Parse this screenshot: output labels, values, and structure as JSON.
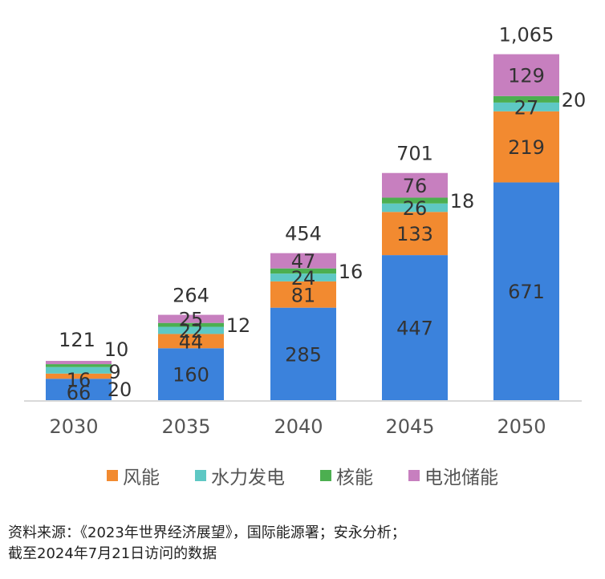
{
  "chart_data": {
    "type": "bar",
    "stacked": true,
    "title": "",
    "xlabel": "",
    "ylabel": "",
    "categories": [
      "2030",
      "2035",
      "2040",
      "2045",
      "2050"
    ],
    "series": [
      {
        "name": "",
        "color": "#3b82dc",
        "values": [
          66,
          160,
          285,
          447,
          671
        ],
        "legend": false
      },
      {
        "name": "风能",
        "color": "#f28a30",
        "values": [
          16,
          44,
          81,
          133,
          219
        ],
        "legend": true
      },
      {
        "name": "水力发电",
        "color": "#5ec8c4",
        "values": [
          20,
          22,
          24,
          26,
          27
        ],
        "legend": true
      },
      {
        "name": "核能",
        "color": "#4caf50",
        "values": [
          9,
          12,
          16,
          18,
          20
        ],
        "legend": true
      },
      {
        "name": "电池储能",
        "color": "#c77fbf",
        "values": [
          10,
          25,
          47,
          76,
          129
        ],
        "legend": true
      }
    ],
    "totals": [
      "121",
      "264",
      "454",
      "701",
      "1,065"
    ],
    "segment_labels": [
      [
        "66",
        "160",
        "285",
        "447",
        "671"
      ],
      [
        "16",
        "44",
        "81",
        "133",
        "219"
      ],
      [
        "20",
        "22",
        "24",
        "26",
        "27"
      ],
      [
        "9",
        "12",
        "16",
        "18",
        "20"
      ],
      [
        "10",
        "25",
        "47",
        "76",
        "129"
      ]
    ],
    "ylim": [
      0,
      1065
    ],
    "grid": false,
    "legend_position": "bottom"
  },
  "legend": [
    {
      "label": "风能",
      "color": "#f28a30"
    },
    {
      "label": "水力发电",
      "color": "#5ec8c4"
    },
    {
      "label": "核能",
      "color": "#4caf50"
    },
    {
      "label": "电池储能",
      "color": "#c77fbf"
    }
  ],
  "source": {
    "line1": "资料来源：《2023年世界经济展望》，国际能源署；安永分析；",
    "line2": "截至2024年7月21日访问的数据"
  }
}
